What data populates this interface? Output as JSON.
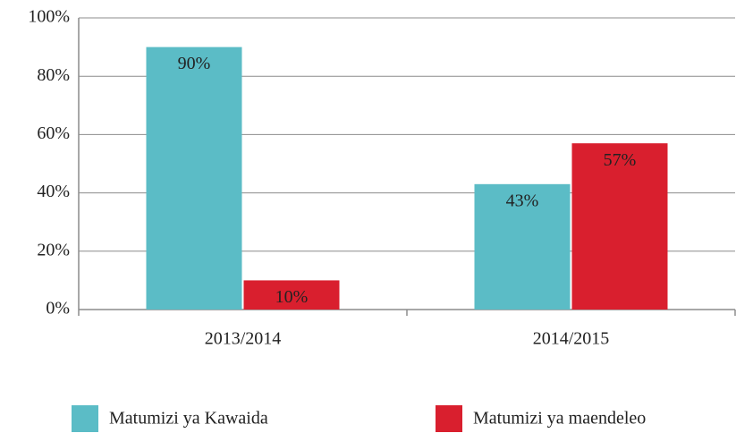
{
  "chart_data": {
    "type": "bar",
    "categories": [
      "2013/2014",
      "2014/2015"
    ],
    "series": [
      {
        "name": "Matumizi ya Kawaida",
        "color": "#5bbcc6",
        "values": [
          90,
          43
        ],
        "value_labels": [
          "90%",
          "43%"
        ]
      },
      {
        "name": "Matumizi ya maendeleo",
        "color": "#d91f2e",
        "values": [
          10,
          57
        ],
        "value_labels": [
          "10%",
          "57%"
        ]
      }
    ],
    "ylim": [
      0,
      100
    ],
    "yticks": [
      {
        "value": 0,
        "label": "0%"
      },
      {
        "value": 20,
        "label": "20%"
      },
      {
        "value": 40,
        "label": "40%"
      },
      {
        "value": 60,
        "label": "60%"
      },
      {
        "value": 80,
        "label": "80%"
      },
      {
        "value": 100,
        "label": "100%"
      }
    ],
    "grid": true,
    "legend": "bottom"
  }
}
